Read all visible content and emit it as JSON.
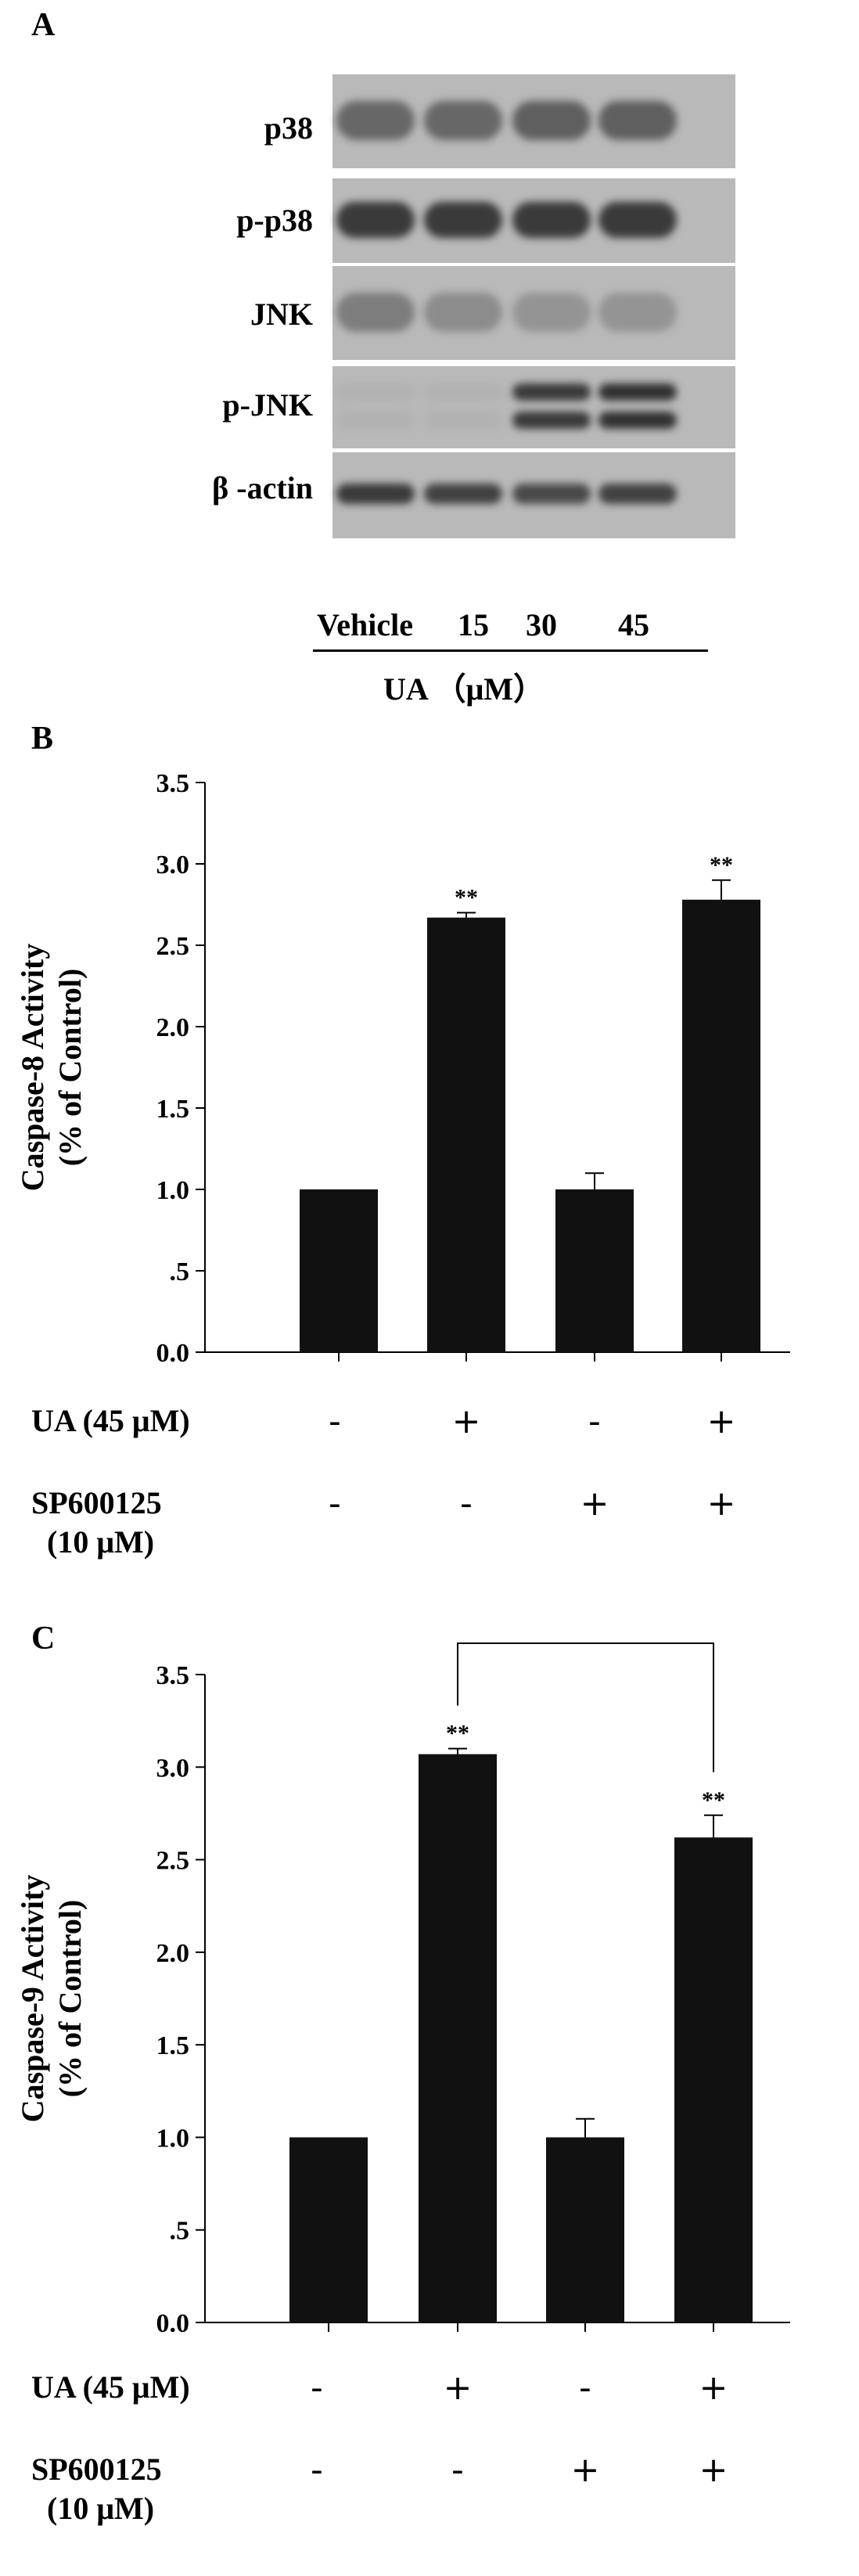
{
  "panel_a": {
    "letter": "A",
    "rows": [
      {
        "label": "p38",
        "type": "single",
        "intensity": [
          0.55,
          0.55,
          0.6,
          0.6
        ]
      },
      {
        "label": "p-p38",
        "type": "single",
        "intensity": [
          0.85,
          0.85,
          0.85,
          0.85
        ]
      },
      {
        "label": "JNK",
        "type": "single",
        "intensity": [
          0.4,
          0.3,
          0.25,
          0.25
        ]
      },
      {
        "label": "p-JNK",
        "type": "double",
        "intensity": [
          0.05,
          0.05,
          0.85,
          0.9
        ]
      },
      {
        "label": "β -actin",
        "type": "thin",
        "intensity": [
          0.85,
          0.8,
          0.75,
          0.8
        ]
      }
    ],
    "lanes": [
      "Vehicle",
      "15",
      "30",
      "45"
    ],
    "group_label": "UA  （μM）"
  },
  "chart_data": [
    {
      "panel": "B",
      "type": "bar",
      "ylabel": [
        "Caspase-8 Activity",
        "(% of Control)"
      ],
      "ylim": [
        0,
        3.5
      ],
      "yticks": [
        "0.0",
        ".5",
        "1.0",
        "1.5",
        "2.0",
        "2.5",
        "3.0",
        "3.5"
      ],
      "values": [
        1.0,
        2.67,
        1.0,
        2.78
      ],
      "errors": [
        0,
        0.03,
        0.1,
        0.12
      ],
      "significance": [
        "",
        "**",
        "",
        "**"
      ],
      "conditions": [
        {
          "label": "UA (45 μM)",
          "signs": [
            "-",
            "+",
            "-",
            "+"
          ]
        },
        {
          "label": "SP600125",
          "label2": "(10 μM)",
          "signs": [
            "-",
            "-",
            "+",
            "+"
          ]
        }
      ]
    },
    {
      "panel": "C",
      "type": "bar",
      "ylabel": [
        "Caspase-9 Activity",
        "(% of Control)"
      ],
      "ylim": [
        0,
        3.5
      ],
      "yticks": [
        "0.0",
        ".5",
        "1.0",
        "1.5",
        "2.0",
        "2.5",
        "3.0",
        "3.5"
      ],
      "values": [
        1.0,
        3.07,
        1.0,
        2.62
      ],
      "errors": [
        0,
        0.03,
        0.1,
        0.12
      ],
      "significance": [
        "",
        "**",
        "",
        "**"
      ],
      "bracket": {
        "from": 1,
        "to": 3,
        "label": "##"
      },
      "conditions": [
        {
          "label": "UA (45 μM)",
          "signs": [
            "-",
            "+",
            "-",
            "+"
          ]
        },
        {
          "label": "SP600125",
          "label2": "(10 μM)",
          "signs": [
            "-",
            "-",
            "+",
            "+"
          ]
        }
      ]
    }
  ]
}
